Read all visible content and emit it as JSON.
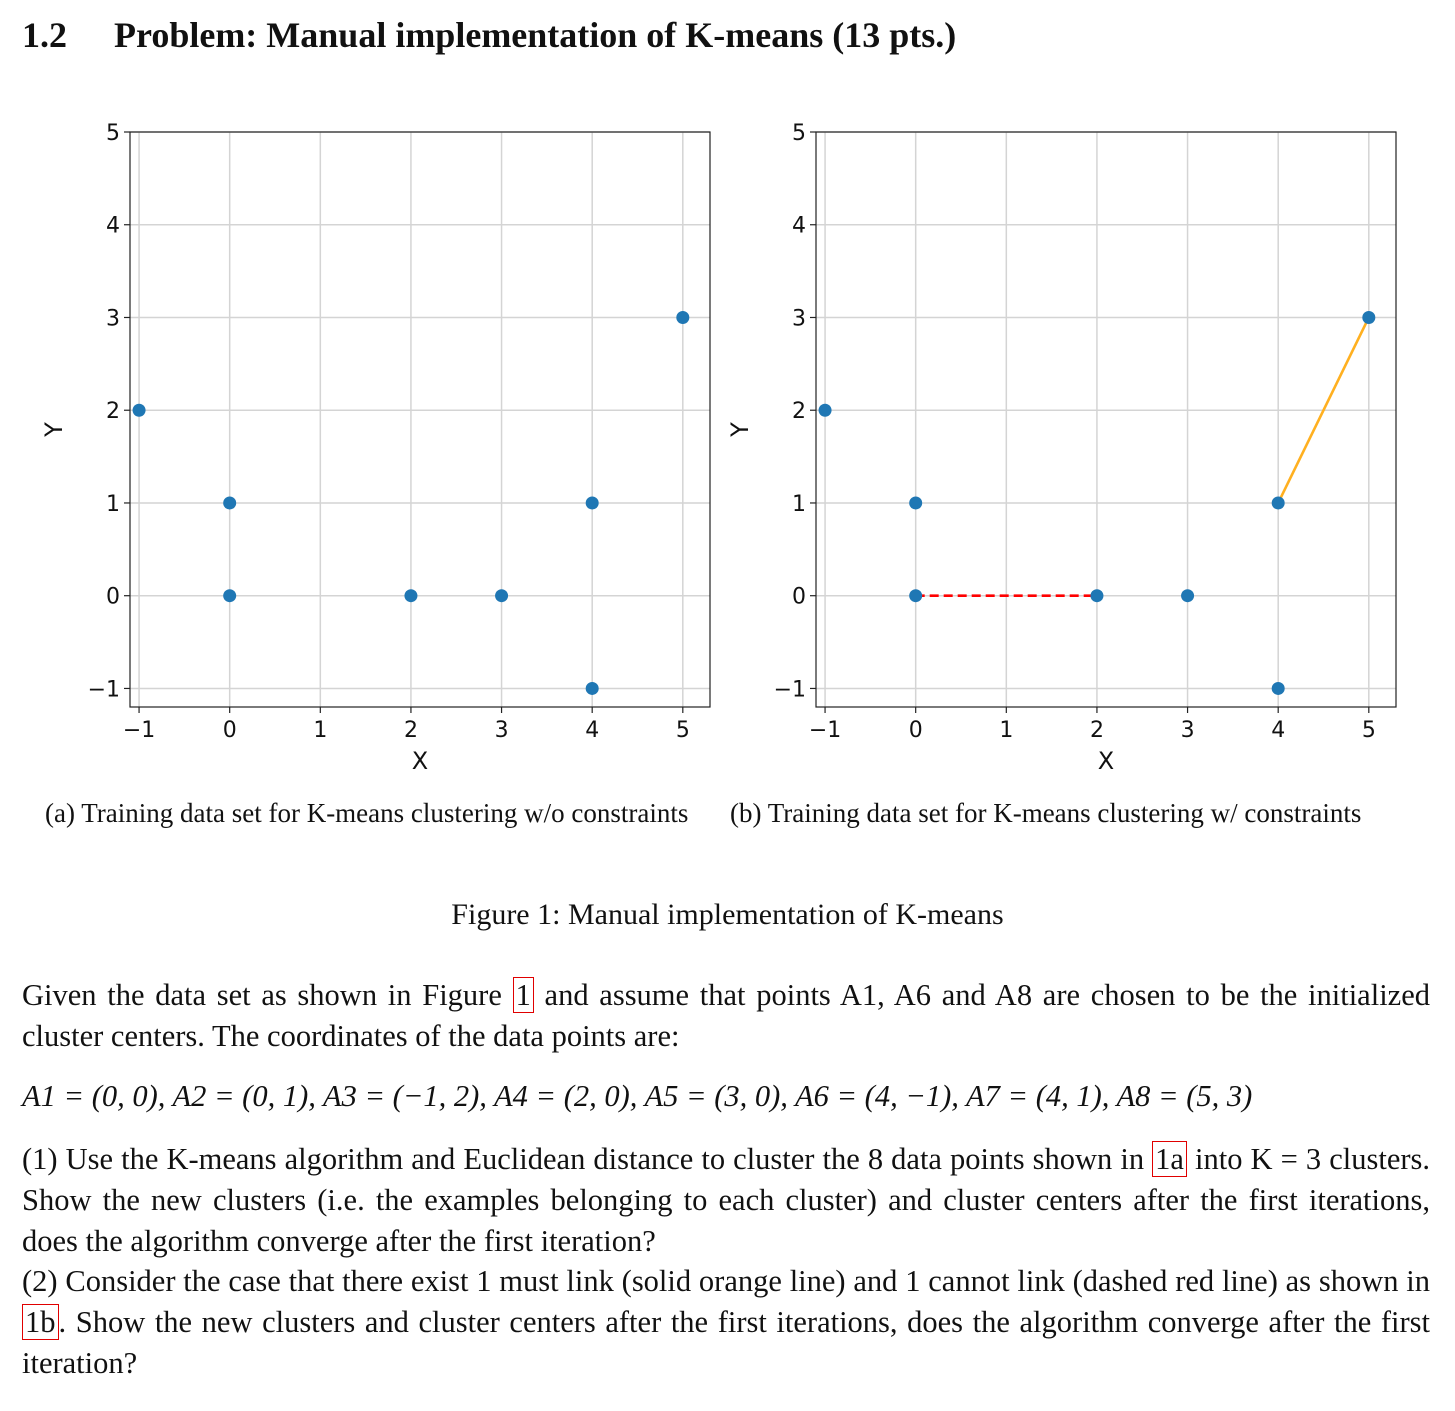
{
  "heading": {
    "number": "1.2",
    "title": "Problem: Manual implementation of K-means (13 pts.)"
  },
  "figure": {
    "caption": "Figure 1: Manual implementation of K-means",
    "charts": [
      {
        "id": "a",
        "subcaption": "(a) Training data set for K-means clustering w/o constraints"
      },
      {
        "id": "b",
        "subcaption": "(b) Training data set for K-means clustering w/ constraints"
      }
    ]
  },
  "chart_data": [
    {
      "type": "scatter",
      "xlabel": "X",
      "ylabel": "Y",
      "xlim": [
        -1.1,
        5.3
      ],
      "ylim": [
        -1.2,
        5.0
      ],
      "xticks": [
        "−1",
        "0",
        "1",
        "2",
        "3",
        "4",
        "5"
      ],
      "yticks": [
        "−1",
        "0",
        "1",
        "2",
        "3",
        "4",
        "5"
      ],
      "grid": true,
      "point_color": "#1f77b4",
      "points": [
        [
          0,
          0
        ],
        [
          0,
          1
        ],
        [
          -1,
          2
        ],
        [
          2,
          0
        ],
        [
          3,
          0
        ],
        [
          4,
          -1
        ],
        [
          4,
          1
        ],
        [
          5,
          3
        ]
      ],
      "links": []
    },
    {
      "type": "scatter",
      "xlabel": "X",
      "ylabel": "Y",
      "xlim": [
        -1.1,
        5.3
      ],
      "ylim": [
        -1.2,
        5.0
      ],
      "xticks": [
        "−1",
        "0",
        "1",
        "2",
        "3",
        "4",
        "5"
      ],
      "yticks": [
        "−1",
        "0",
        "1",
        "2",
        "3",
        "4",
        "5"
      ],
      "grid": true,
      "point_color": "#1f77b4",
      "points": [
        [
          0,
          0
        ],
        [
          0,
          1
        ],
        [
          -1,
          2
        ],
        [
          2,
          0
        ],
        [
          3,
          0
        ],
        [
          4,
          -1
        ],
        [
          4,
          1
        ],
        [
          5,
          3
        ]
      ],
      "links": [
        {
          "kind": "cannot-link",
          "from": [
            0,
            0
          ],
          "to": [
            2,
            0
          ],
          "color": "#ff0000",
          "style": "dashed"
        },
        {
          "kind": "must-link",
          "from": [
            4,
            1
          ],
          "to": [
            5,
            3
          ],
          "color": "#ffb020",
          "style": "solid"
        }
      ]
    }
  ],
  "text": {
    "p1_before": "Given the data set as shown in Figure ",
    "p1_ref": "1",
    "p1_after": " and assume that points A1, A6 and A8 are chosen to be the initialized cluster centers. The coordinates of the data points are:",
    "p2": "A1 = (0, 0), A2 = (0, 1), A3 = (−1, 2), A4 = (2, 0), A5 = (3, 0), A6 = (4, −1), A7 = (4, 1), A8 = (5, 3)",
    "p3_before": "(1) Use the K-means algorithm and Euclidean distance to cluster the 8 data points shown in ",
    "p3_ref": "1a",
    "p3_after": " into K = 3 clusters. Show the new clusters (i.e. the examples belonging to each cluster) and cluster centers after the first iterations, does the algorithm converge after the first iteration?",
    "p4_before": "(2) Consider the case that there exist 1 must link (solid orange line) and 1 cannot link (dashed red line) as shown in ",
    "p4_ref": "1b",
    "p4_after": ". Show the new clusters and cluster centers after the first iterations, does the algorithm converge after the first iteration?"
  }
}
